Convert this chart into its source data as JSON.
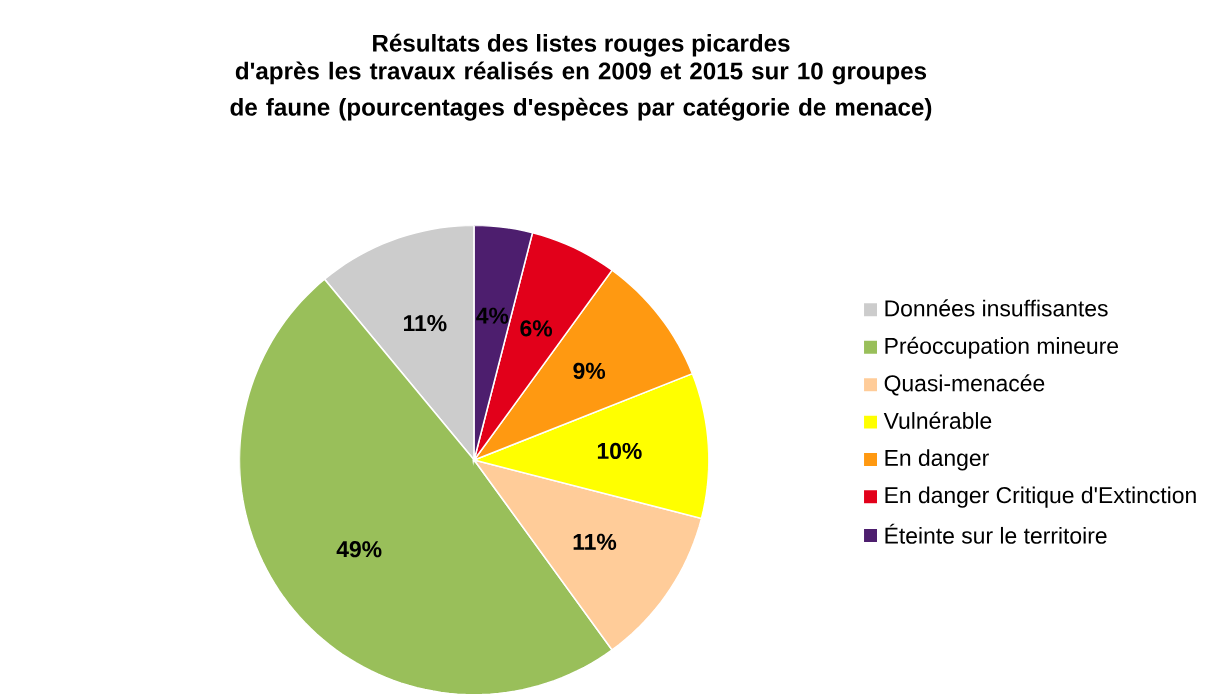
{
  "chart_data": {
    "type": "pie",
    "title": "Résultats des listes rouges picardes",
    "subtitle": "d'après les travaux réalisés en 2009 et 2015 sur 10 groupes de faune (pourcentages d'espèces par catégorie de menace)",
    "categories": [
      "Données insuffisantes",
      "Préoccupation mineure",
      "Quasi-menacée",
      "Vulnérable",
      "En danger",
      "En danger Critique d'Extinction",
      "Éteinte sur le territoire"
    ],
    "values": [
      11,
      49,
      11,
      10,
      9,
      6,
      4
    ],
    "value_labels": [
      "11%",
      "49%",
      "11%",
      "10%",
      "9%",
      "6%",
      "4%"
    ],
    "colors": [
      "#cccccc",
      "#99bf5a",
      "#ffcc99",
      "#ffff00",
      "#ff9911",
      "#e2001a",
      "#4d1e6e"
    ],
    "legend": "right"
  }
}
